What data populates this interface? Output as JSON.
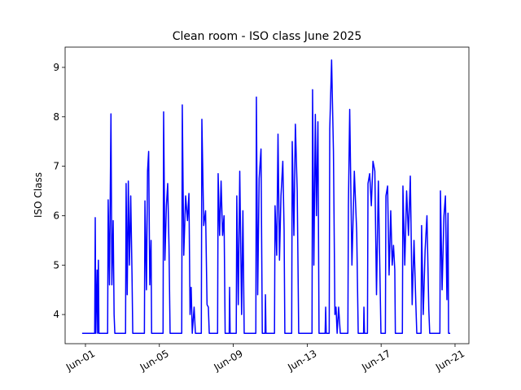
{
  "chart_data": {
    "type": "line",
    "title": "Clean room - ISO class June 2025",
    "y_label": "ISO Class",
    "x": [
      0.82,
      1.5,
      1.53,
      1.56,
      1.63,
      1.66,
      1.7,
      1.73,
      2.2,
      2.23,
      2.3,
      2.38,
      2.43,
      2.5,
      2.55,
      2.59,
      3.17,
      3.2,
      3.26,
      3.32,
      3.38,
      3.45,
      3.52,
      3.56,
      4.19,
      4.22,
      4.3,
      4.36,
      4.42,
      4.48,
      4.55,
      4.58,
      5.2,
      5.23,
      5.3,
      5.38,
      5.45,
      5.52,
      5.58,
      6.21,
      6.24,
      6.32,
      6.42,
      6.52,
      6.6,
      6.66,
      6.72,
      6.78,
      6.88,
      6.95,
      7.27,
      7.3,
      7.4,
      7.5,
      7.58,
      7.65,
      7.7,
      8.15,
      8.18,
      8.26,
      8.34,
      8.42,
      8.5,
      8.56,
      8.78,
      8.8,
      8.83,
      9.16,
      9.19,
      9.27,
      9.35,
      9.45,
      9.52,
      9.59,
      10.22,
      10.25,
      10.32,
      10.4,
      10.5,
      10.57,
      10.72,
      10.74,
      10.77,
      11.23,
      11.26,
      11.35,
      11.42,
      11.5,
      11.58,
      11.68,
      11.75,
      11.79,
      12.16,
      12.19,
      12.28,
      12.36,
      12.46,
      12.54,
      13.26,
      13.29,
      13.36,
      13.44,
      13.5,
      13.58,
      13.64,
      13.97,
      14.0,
      14.03,
      14.19,
      14.22,
      14.32,
      14.42,
      14.5,
      14.56,
      14.62,
      14.7,
      14.79,
      15.2,
      15.23,
      15.3,
      15.42,
      15.55,
      15.68,
      15.76,
      16.05,
      16.07,
      16.1,
      16.26,
      16.29,
      16.38,
      16.47,
      16.56,
      16.66,
      16.75,
      16.85,
      16.95,
      16.99,
      17.23,
      17.26,
      17.35,
      17.43,
      17.52,
      17.6,
      17.67,
      17.74,
      17.77,
      18.15,
      18.18,
      18.28,
      18.38,
      18.48,
      18.58,
      18.68,
      18.78,
      18.88,
      18.93,
      19.16,
      19.19,
      19.28,
      19.38,
      19.48,
      19.58,
      19.63,
      20.18,
      20.21,
      20.3,
      20.4,
      20.48,
      20.56,
      20.62,
      20.65,
      20.74
    ],
    "series": [
      {
        "color": "#0000ff",
        "values": [
          3.62,
          3.62,
          5.96,
          3.62,
          4.9,
          3.62,
          5.1,
          3.62,
          3.62,
          6.32,
          4.6,
          8.06,
          4.6,
          5.9,
          4.0,
          3.62,
          3.62,
          6.65,
          4.4,
          6.7,
          5.0,
          6.4,
          4.8,
          3.62,
          3.62,
          6.3,
          4.5,
          6.9,
          7.3,
          4.6,
          5.5,
          3.62,
          3.62,
          8.1,
          5.1,
          6.2,
          6.65,
          5.4,
          3.62,
          3.62,
          8.24,
          5.2,
          6.4,
          5.9,
          6.45,
          4.0,
          4.55,
          3.62,
          4.15,
          3.62,
          3.62,
          7.95,
          5.8,
          6.1,
          4.2,
          4.15,
          3.62,
          3.62,
          6.85,
          5.6,
          6.7,
          5.6,
          6.0,
          3.62,
          3.62,
          4.55,
          3.62,
          3.62,
          6.4,
          4.2,
          6.9,
          4.0,
          6.1,
          3.62,
          3.62,
          8.4,
          4.4,
          6.75,
          7.35,
          3.62,
          3.62,
          4.4,
          3.62,
          3.62,
          6.2,
          5.2,
          7.65,
          5.1,
          6.4,
          7.1,
          5.7,
          3.62,
          3.62,
          7.5,
          5.6,
          7.85,
          6.5,
          3.62,
          3.62,
          8.55,
          5.0,
          8.05,
          6.0,
          7.9,
          3.62,
          3.62,
          4.15,
          3.62,
          3.62,
          7.75,
          9.15,
          7.3,
          4.0,
          4.15,
          3.62,
          4.15,
          3.62,
          3.62,
          6.2,
          8.15,
          5.0,
          6.9,
          5.65,
          3.62,
          3.62,
          4.15,
          3.62,
          3.62,
          6.65,
          6.85,
          6.2,
          7.1,
          6.9,
          4.4,
          6.7,
          4.5,
          3.62,
          3.62,
          6.4,
          6.6,
          4.8,
          6.1,
          5.0,
          5.4,
          4.9,
          3.62,
          3.62,
          6.6,
          5.0,
          6.5,
          5.6,
          6.8,
          4.2,
          5.5,
          4.2,
          3.62,
          3.62,
          5.8,
          4.0,
          5.3,
          6.0,
          4.1,
          3.62,
          3.62,
          6.5,
          4.5,
          6.0,
          6.4,
          4.3,
          6.05,
          3.62,
          3.62
        ]
      }
    ],
    "xlim": [
      -0.1,
      21.75
    ],
    "ylim": [
      3.41,
      9.41
    ],
    "xticks": [
      {
        "value": 1,
        "label": "Jun-01"
      },
      {
        "value": 5,
        "label": "Jun-05"
      },
      {
        "value": 9,
        "label": "Jun-09"
      },
      {
        "value": 13,
        "label": "Jun-13"
      },
      {
        "value": 17,
        "label": "Jun-17"
      },
      {
        "value": 21,
        "label": "Jun-21"
      }
    ],
    "yticks": [
      4,
      5,
      6,
      7,
      8,
      9
    ]
  }
}
